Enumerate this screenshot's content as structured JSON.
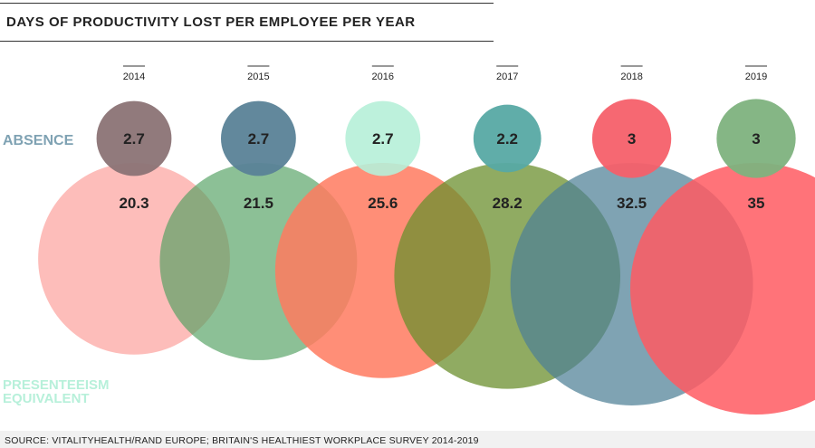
{
  "chart_data": {
    "type": "bubble",
    "title": "DAYS OF PRODUCTIVITY LOST PER EMPLOYEE PER YEAR",
    "categories": [
      "2014",
      "2015",
      "2016",
      "2017",
      "2018",
      "2019"
    ],
    "series": [
      {
        "name": "ABSENCE",
        "values": [
          2.7,
          2.7,
          2.7,
          2.2,
          3,
          3
        ],
        "colors": [
          "#8b7375",
          "#5a8297",
          "#b6f0d8",
          "#57a9a4",
          "#f5606a",
          "#7eb27e"
        ],
        "opacities": [
          0.95,
          0.95,
          0.9,
          0.95,
          0.95,
          0.95
        ]
      },
      {
        "name": "PRESENTEEISM EQUIVALENT",
        "values": [
          20.3,
          21.5,
          25.6,
          28.2,
          32.5,
          35
        ],
        "colors": [
          "#fdb2ae",
          "#4f9e5e",
          "#ff7a5f",
          "#6b8f2d",
          "#4d7f96",
          "#ff5b62"
        ],
        "opacities": [
          0.85,
          0.65,
          0.85,
          0.75,
          0.72,
          0.85
        ]
      }
    ],
    "series_label_colors": [
      "#7fa2b3",
      "#b7f0da"
    ],
    "text_color": "#222222",
    "source": "SOURCE: VITALITYHEALTH/RAND EUROPE; BRITAIN'S HEALTHIEST WORKPLACE SURVEY 2014-2019"
  }
}
